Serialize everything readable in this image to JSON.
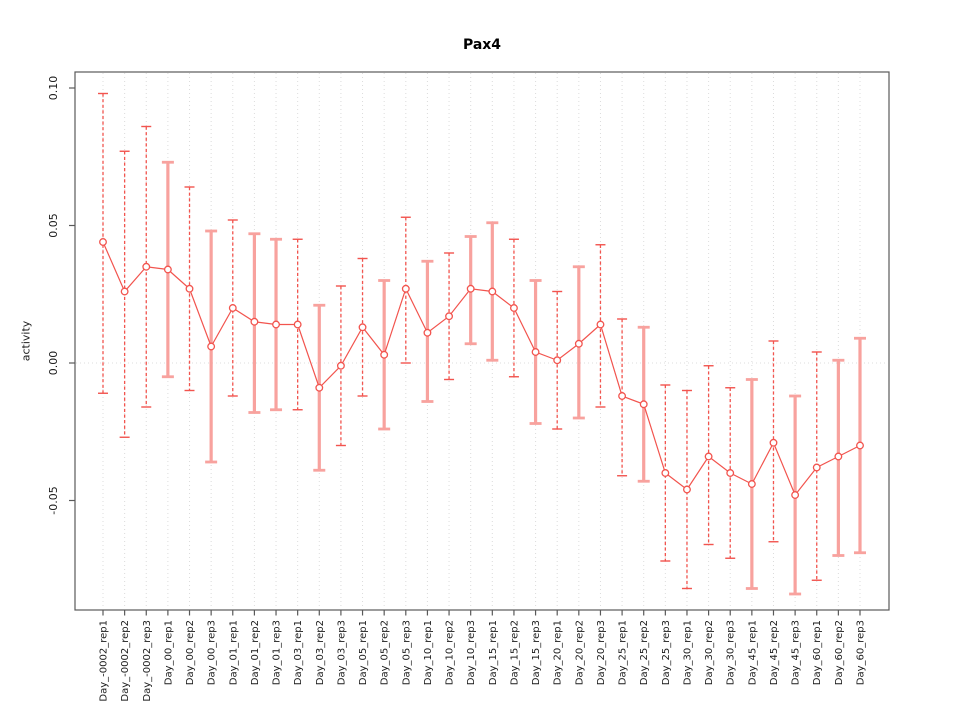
{
  "title": "Pax4",
  "chart_data": {
    "type": "scatter",
    "title": "Pax4",
    "xlabel": "",
    "ylabel": "activity",
    "ylim": [
      -0.09,
      0.106
    ],
    "yticks": {
      "values": [
        0.1,
        0.05,
        0.0,
        -0.05
      ],
      "labels": [
        "0.10",
        "0.05",
        "0.00",
        "-0.05"
      ]
    },
    "grid": "vertical dotted line at each category; dotted horizontal line at y=0",
    "legend": "none",
    "marker": "open circle connected by line, vertical error bars with end caps",
    "categories": [
      "Day_-0002_rep1",
      "Day_-0002_rep2",
      "Day_-0002_rep3",
      "Day_00_rep1",
      "Day_00_rep2",
      "Day_00_rep3",
      "Day_01_rep1",
      "Day_01_rep2",
      "Day_01_rep3",
      "Day_03_rep1",
      "Day_03_rep2",
      "Day_03_rep3",
      "Day_05_rep1",
      "Day_05_rep2",
      "Day_05_rep3",
      "Day_10_rep1",
      "Day_10_rep2",
      "Day_10_rep3",
      "Day_15_rep1",
      "Day_15_rep2",
      "Day_15_rep3",
      "Day_20_rep1",
      "Day_20_rep2",
      "Day_20_rep3",
      "Day_25_rep1",
      "Day_25_rep2",
      "Day_25_rep3",
      "Day_30_rep1",
      "Day_30_rep2",
      "Day_30_rep3",
      "Day_45_rep1",
      "Day_45_rep2",
      "Day_45_rep3",
      "Day_60_rep1",
      "Day_60_rep2",
      "Day_60_rep3"
    ],
    "series": [
      {
        "name": "activity",
        "values": [
          0.044,
          0.026,
          0.035,
          0.034,
          0.027,
          0.006,
          0.02,
          0.015,
          0.014,
          0.014,
          -0.009,
          -0.001,
          0.013,
          0.003,
          0.027,
          0.011,
          0.017,
          0.027,
          0.026,
          0.02,
          0.004,
          0.001,
          0.007,
          0.014,
          -0.012,
          -0.015,
          -0.04,
          -0.046,
          -0.034,
          -0.04,
          -0.044,
          -0.029,
          -0.048,
          -0.038,
          -0.034,
          -0.03
        ],
        "error_low": [
          -0.011,
          -0.027,
          -0.016,
          -0.005,
          -0.01,
          -0.036,
          -0.012,
          -0.018,
          -0.017,
          -0.017,
          -0.039,
          -0.03,
          -0.012,
          -0.024,
          0.0,
          -0.014,
          -0.006,
          0.007,
          0.001,
          -0.005,
          -0.022,
          -0.024,
          -0.02,
          -0.016,
          -0.041,
          -0.043,
          -0.072,
          -0.082,
          -0.066,
          -0.071,
          -0.082,
          -0.065,
          -0.084,
          -0.079,
          -0.07,
          -0.069
        ],
        "error_high": [
          0.098,
          0.077,
          0.086,
          0.073,
          0.064,
          0.048,
          0.052,
          0.047,
          0.045,
          0.045,
          0.021,
          0.028,
          0.038,
          0.03,
          0.053,
          0.037,
          0.04,
          0.046,
          0.051,
          0.045,
          0.03,
          0.026,
          0.035,
          0.043,
          0.016,
          0.013,
          -0.008,
          -0.01,
          -0.001,
          -0.009,
          -0.006,
          0.008,
          -0.012,
          0.004,
          0.001,
          0.009
        ],
        "bar_styles": [
          "dashed",
          "dashed",
          "dashed",
          "solid",
          "dashed",
          "solid",
          "dashed",
          "solid",
          "solid",
          "dashed",
          "solid",
          "dashed",
          "dashed",
          "solid",
          "dashed",
          "solid",
          "dashed",
          "solid",
          "solid",
          "dashed",
          "solid",
          "dashed",
          "solid",
          "dashed",
          "dashed",
          "solid",
          "dashed",
          "dashed",
          "dashed",
          "dashed",
          "solid",
          "dashed",
          "solid",
          "dashed",
          "solid",
          "solid"
        ]
      }
    ],
    "colors": {
      "point": "#f2544e",
      "line": "#f2544e",
      "error_bar_dashed": "#f2544e",
      "error_bar_solid": "#f8a29e",
      "grid": "#dcdcdc",
      "axis": "#595959",
      "tick_text": "#1a1a1a",
      "title_text": "#000000",
      "background": "#ffffff"
    }
  }
}
